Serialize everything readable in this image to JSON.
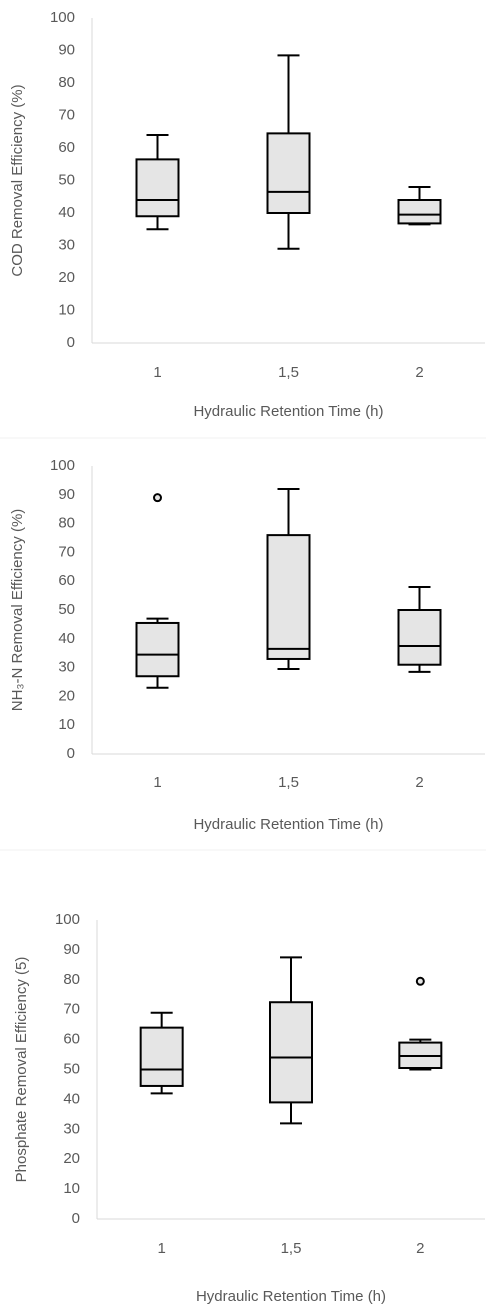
{
  "chart_data": [
    {
      "type": "box",
      "y_label": "COD Removal Efficiency (%)",
      "x_label": "Hydraulic Retention Time (h)",
      "categories": [
        "1",
        "1,5",
        "2"
      ],
      "color": "#e5e5e5",
      "boxes": [
        {
          "min": 35,
          "q1": 39,
          "median": 44,
          "q3": 56.5,
          "max": 64
        },
        {
          "min": 29,
          "q1": 40,
          "median": 46.5,
          "q3": 64.5,
          "max": 88.5
        },
        {
          "min": 36.5,
          "q1": 36.8,
          "median": 39.5,
          "q3": 44,
          "max": 48
        }
      ],
      "ylim": [
        0,
        100
      ],
      "yticks": [
        0,
        10,
        20,
        30,
        40,
        50,
        60,
        70,
        80,
        90,
        100
      ]
    },
    {
      "type": "box",
      "y_label": "NH₃-N Removal Efficiency (%)",
      "x_label": "Hydraulic Retention Time (h)",
      "categories": [
        "1",
        "1,5",
        "2"
      ],
      "color": "#e5e5e5",
      "boxes": [
        {
          "min": 23,
          "q1": 27,
          "median": 34.5,
          "q3": 45.5,
          "max": 47,
          "outliers": [
            89
          ]
        },
        {
          "min": 29.5,
          "q1": 33,
          "median": 36.5,
          "q3": 76,
          "max": 92
        },
        {
          "min": 28.5,
          "q1": 31,
          "median": 37.5,
          "q3": 50,
          "max": 58
        }
      ],
      "ylim": [
        0,
        100
      ],
      "yticks": [
        0,
        10,
        20,
        30,
        40,
        50,
        60,
        70,
        80,
        90,
        100
      ]
    },
    {
      "type": "box",
      "y_label": "Phosphate Removal Efficiency (5)",
      "x_label": "Hydraulic Retention Time (h)",
      "categories": [
        "1",
        "1,5",
        "2"
      ],
      "color": "#e5e5e5",
      "boxes": [
        {
          "min": 42,
          "q1": 44.5,
          "median": 50,
          "q3": 64,
          "max": 69
        },
        {
          "min": 32,
          "q1": 39,
          "median": 54,
          "q3": 72.5,
          "max": 87.5
        },
        {
          "min": 50,
          "q1": 50.5,
          "median": 54.5,
          "q3": 59,
          "max": 60,
          "outliers": [
            79.5
          ]
        }
      ],
      "ylim": [
        0,
        100
      ],
      "yticks": [
        0,
        10,
        20,
        30,
        40,
        50,
        60,
        70,
        80,
        90,
        100
      ]
    }
  ]
}
